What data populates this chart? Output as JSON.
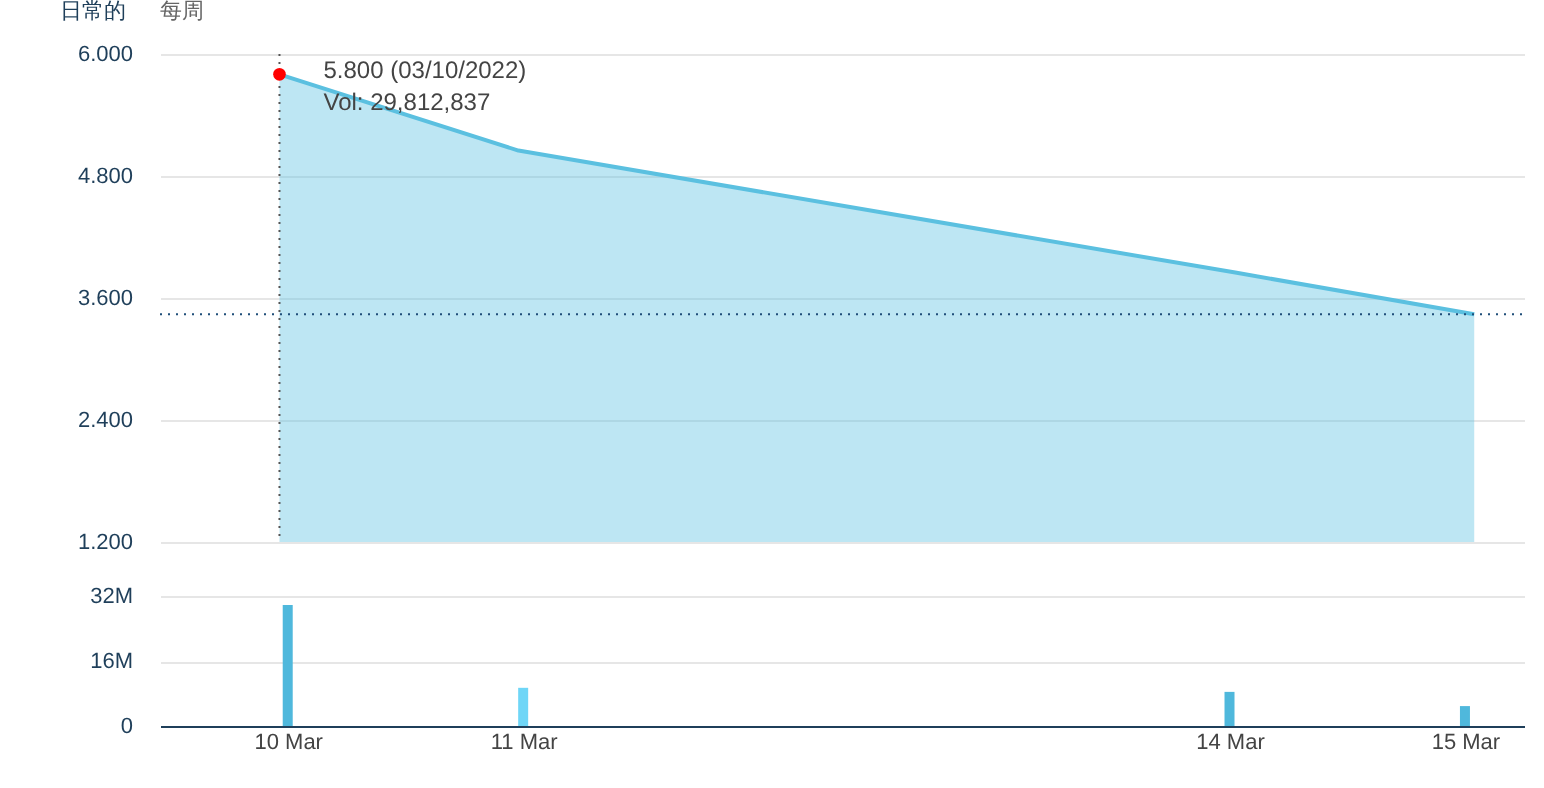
{
  "chart_data": [
    {
      "type": "area",
      "x": [
        "2022-03-10",
        "2022-03-11",
        "2022-03-14",
        "2022-03-15"
      ],
      "series": [
        {
          "color": "#5bc0e0",
          "values": [
            5.8,
            5.05,
            3.85,
            3.44
          ]
        }
      ],
      "xlim": [
        "2022-03-09T12:00",
        "2022-03-15T05:00"
      ],
      "ylim": [
        1.2,
        6.0
      ],
      "yticks": [
        {
          "value": 1.2,
          "label": "1.200"
        },
        {
          "value": 2.4,
          "label": "2.400"
        },
        {
          "value": 3.6,
          "label": "3.600"
        },
        {
          "value": 4.8,
          "label": "4.800"
        },
        {
          "value": 6.0,
          "label": "6.000"
        }
      ],
      "grid": "y",
      "tick_labels": "y",
      "ref_lines": [
        {
          "axis": "y",
          "value": 3.44,
          "color": "#1f4e79",
          "line_style": "dotted"
        },
        {
          "axis": "x",
          "value": "2022-03-10",
          "color": "#555555",
          "line_style": "dotted"
        }
      ],
      "annotations": [
        "日常的",
        "每周",
        {
          "text": "5.800 (03/10/2022)",
          "x": "2022-03-10",
          "y": 5.8
        },
        {
          "text": "Vol: 29,812,837",
          "x": "2022-03-10",
          "y": 5.8
        }
      ]
    },
    {
      "type": "bar",
      "x": [
        "2022-03-10",
        "2022-03-11",
        "2022-03-14",
        "2022-03-15"
      ],
      "values": [
        29812837,
        9400000,
        8400000,
        4900000
      ],
      "colors": [
        "#4fb8dc",
        "#6fd6f7",
        "#4fb8dc",
        "#4fb8dc"
      ],
      "xlim": [
        "2022-03-09T12:00",
        "2022-03-15T05:00"
      ],
      "ylim": [
        0,
        32000000
      ],
      "yticks": [
        0,
        {
          "value": 16000000,
          "label": "16M"
        },
        {
          "value": 32000000,
          "label": "32M"
        }
      ],
      "xticks": [
        {
          "value": "2022-03-10",
          "label": "10 Mar"
        },
        {
          "value": "2022-03-11",
          "label": "11 Mar"
        },
        {
          "value": "2022-03-14",
          "label": "14 Mar"
        },
        {
          "value": "2022-03-15",
          "label": "15 Mar"
        }
      ],
      "grid": "y"
    }
  ]
}
